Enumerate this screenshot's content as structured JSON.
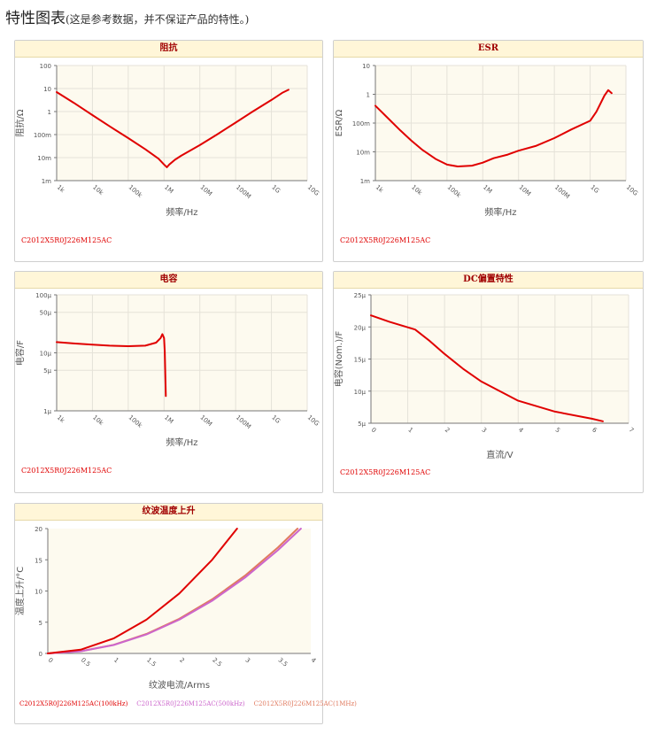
{
  "page": {
    "title": "特性图表",
    "note": "(这是参考数据，并不保证产品的特性。)"
  },
  "colors": {
    "main": "#e00000",
    "purple": "#cc66cc",
    "orange": "#e07a5f",
    "plot_bg": "#fdfaef",
    "grid": "#e5e2d8"
  },
  "chart_data": [
    {
      "id": "impedance",
      "type": "line",
      "title": "阻抗",
      "xlabel": "频率/Hz",
      "ylabel": "阻抗/Ω",
      "xscale": "log",
      "yscale": "log",
      "xlim": [
        1000,
        10000000000
      ],
      "ylim": [
        0.001,
        100
      ],
      "xticks": [
        1000,
        10000,
        100000,
        1000000,
        10000000,
        100000000,
        1000000000,
        10000000000
      ],
      "xtick_labels": [
        "1k",
        "10k",
        "100k",
        "1M",
        "10M",
        "100M",
        "1G",
        "10G"
      ],
      "yticks": [
        0.001,
        0.01,
        0.1,
        1,
        10,
        100
      ],
      "ytick_labels": [
        "1m",
        "10m",
        "100m",
        "1",
        "10",
        "100"
      ],
      "grid": true,
      "part_label": "C2012X5R0J226M125AC",
      "series": [
        {
          "x": [
            1000,
            3000,
            10000,
            30000,
            100000,
            300000,
            700000,
            1000000,
            1200000,
            1400000,
            2000000,
            3000000,
            10000000,
            30000000,
            100000000,
            300000000,
            1000000000,
            2000000000,
            3000000000
          ],
          "y": [
            7,
            2.4,
            0.7,
            0.23,
            0.07,
            0.023,
            0.009,
            0.005,
            0.0038,
            0.005,
            0.008,
            0.012,
            0.035,
            0.1,
            0.33,
            1.0,
            3.2,
            6.5,
            8.8
          ]
        }
      ]
    },
    {
      "id": "esr",
      "type": "line",
      "title": "ESR",
      "xlabel": "频率/Hz",
      "ylabel": "ESR/Ω",
      "xscale": "log",
      "yscale": "log",
      "xlim": [
        1000,
        10000000000
      ],
      "ylim": [
        0.001,
        10
      ],
      "xticks": [
        1000,
        10000,
        100000,
        1000000,
        10000000,
        100000000,
        1000000000,
        10000000000
      ],
      "xtick_labels": [
        "1k",
        "10k",
        "100k",
        "1M",
        "10M",
        "100M",
        "1G",
        "10G"
      ],
      "yticks": [
        0.001,
        0.01,
        0.1,
        1,
        10
      ],
      "ytick_labels": [
        "1m",
        "10m",
        "100m",
        "1",
        "10"
      ],
      "grid": true,
      "part_label": "C2012X5R0J226M125AC",
      "series": [
        {
          "x": [
            1000,
            2000,
            5000,
            10000,
            20000,
            50000,
            100000,
            200000,
            500000,
            1000000,
            2000000,
            5000000,
            10000000,
            30000000,
            100000000,
            300000000,
            1000000000,
            1500000000,
            2500000000,
            3200000000,
            4000000000
          ],
          "y": [
            0.4,
            0.17,
            0.055,
            0.025,
            0.012,
            0.0055,
            0.0036,
            0.0031,
            0.0033,
            0.0042,
            0.006,
            0.008,
            0.011,
            0.016,
            0.03,
            0.06,
            0.12,
            0.25,
            0.9,
            1.4,
            1.1
          ]
        }
      ]
    },
    {
      "id": "capacitance",
      "type": "line",
      "title": "电容",
      "xlabel": "频率/Hz",
      "ylabel": "电容/F",
      "xscale": "log",
      "yscale": "log",
      "xlim": [
        1000,
        10000000000
      ],
      "ylim": [
        1e-06,
        0.0001
      ],
      "xticks": [
        1000,
        10000,
        100000,
        1000000,
        10000000,
        100000000,
        1000000000,
        10000000000
      ],
      "xtick_labels": [
        "1k",
        "10k",
        "100k",
        "1M",
        "10M",
        "100M",
        "1G",
        "10G"
      ],
      "yticks": [
        1e-06,
        5e-06,
        1e-05,
        5e-05,
        0.0001
      ],
      "ytick_labels": [
        "1μ",
        "5μ",
        "10μ",
        "50μ",
        "100μ"
      ],
      "grid": true,
      "part_label": "C2012X5R0J226M125AC",
      "series": [
        {
          "x": [
            1000,
            3000,
            10000,
            30000,
            100000,
            300000,
            600000,
            800000,
            900000,
            1000000,
            1050000,
            1080000,
            1120000
          ],
          "y": [
            1.53e-05,
            1.45e-05,
            1.38e-05,
            1.33e-05,
            1.3e-05,
            1.33e-05,
            1.5e-05,
            1.8e-05,
            2.1e-05,
            1.8e-05,
            1.05e-05,
            5e-06,
            1.8e-06
          ]
        }
      ]
    },
    {
      "id": "dc_bias",
      "type": "line",
      "title": "DC偏置特性",
      "xlabel": "直流/V",
      "ylabel": "电容(Nom.)/F",
      "xscale": "linear",
      "yscale": "linear",
      "xlim": [
        0,
        7
      ],
      "ylim": [
        5e-06,
        2.5e-05
      ],
      "xticks": [
        0,
        1,
        2,
        3,
        4,
        5,
        6,
        7
      ],
      "xtick_labels": [
        "0",
        "1",
        "2",
        "3",
        "4",
        "5",
        "6",
        "7"
      ],
      "yticks": [
        5e-06,
        1e-05,
        1.5e-05,
        2e-05,
        2.5e-05
      ],
      "ytick_labels": [
        "5μ",
        "10μ",
        "15μ",
        "20μ",
        "25μ"
      ],
      "grid": true,
      "part_label": "C2012X5R0J226M125AC",
      "series": [
        {
          "x": [
            0,
            0.5,
            1.2,
            1.6,
            2.0,
            2.5,
            3.0,
            3.5,
            4.0,
            5.0,
            6.0,
            6.3
          ],
          "y": [
            2.18e-05,
            2.08e-05,
            1.96e-05,
            1.78e-05,
            1.58e-05,
            1.35e-05,
            1.15e-05,
            1e-05,
            8.5e-06,
            6.8e-06,
            5.7e-06,
            5.3e-06
          ]
        }
      ]
    },
    {
      "id": "ripple",
      "type": "line",
      "title": "纹波温度上升",
      "xlabel": "纹波电流/Arms",
      "ylabel": "温度上升/°C",
      "xscale": "linear",
      "yscale": "linear",
      "xlim": [
        0,
        4
      ],
      "ylim": [
        0,
        20
      ],
      "xticks": [
        0,
        0.5,
        1,
        1.5,
        2,
        2.5,
        3,
        3.5,
        4
      ],
      "xtick_labels": [
        "0",
        "0.5",
        "1",
        "1.5",
        "2",
        "2.5",
        "3",
        "3.5",
        "4"
      ],
      "yticks": [
        0,
        5,
        10,
        15,
        20
      ],
      "ytick_labels": [
        "0",
        "5",
        "10",
        "15",
        "20"
      ],
      "grid": false,
      "legend_position": "bottom",
      "series": [
        {
          "name": "C2012X5R0J226M125AC(100kHz)",
          "color": "#e00000",
          "x": [
            0,
            0.5,
            1,
            1.5,
            2,
            2.5,
            2.88
          ],
          "y": [
            0,
            0.6,
            2.4,
            5.4,
            9.6,
            15.0,
            20
          ]
        },
        {
          "name": "C2012X5R0J226M125AC(500kHz)",
          "color": "#cc66cc",
          "x": [
            0,
            0.5,
            1,
            1.5,
            2,
            2.5,
            3,
            3.5,
            3.85
          ],
          "y": [
            0,
            0.34,
            1.35,
            3.04,
            5.4,
            8.44,
            12.15,
            16.54,
            20
          ]
        },
        {
          "name": "C2012X5R0J226M125AC(1MHz)",
          "color": "#e07a5f",
          "x": [
            0,
            0.5,
            1,
            1.5,
            2,
            2.5,
            3,
            3.5,
            3.8
          ],
          "y": [
            0,
            0.35,
            1.38,
            3.12,
            5.54,
            8.66,
            12.47,
            16.97,
            20
          ]
        }
      ]
    }
  ]
}
